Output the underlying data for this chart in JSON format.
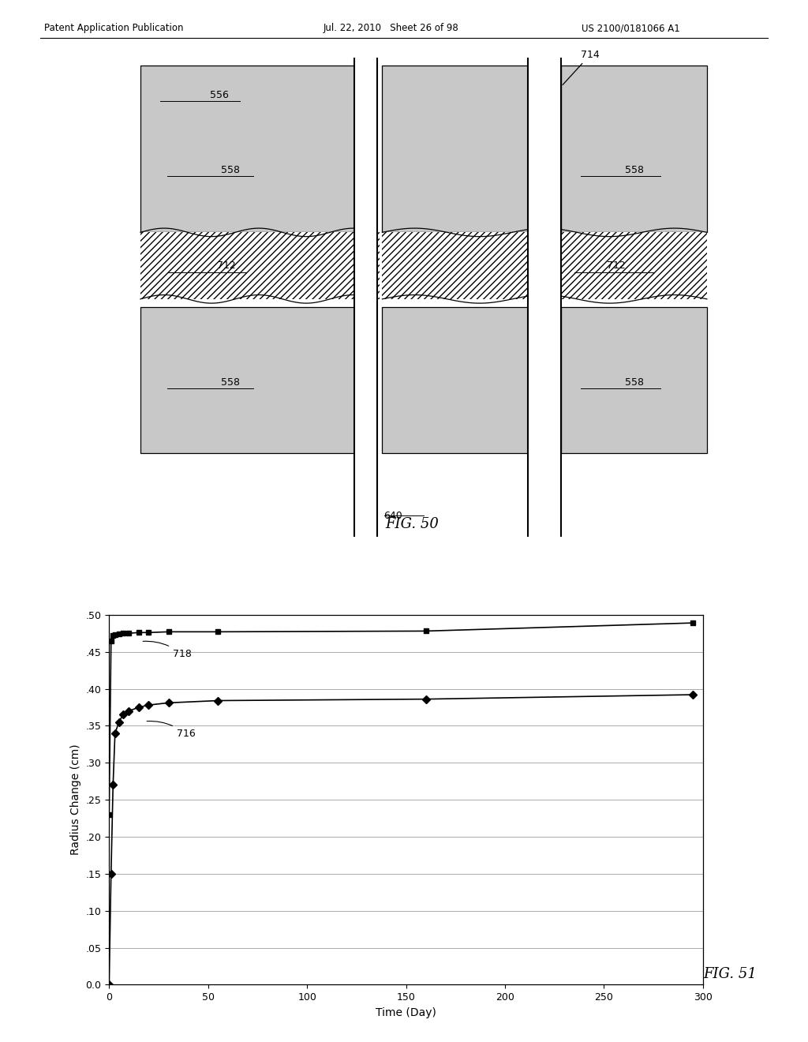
{
  "header_left": "Patent Application Publication",
  "header_mid": "Jul. 22, 2010   Sheet 26 of 98",
  "header_right": "US 2100/0181066 A1",
  "fig50_label": "FIG. 50",
  "fig51_label": "FIG. 51",
  "series718_x": [
    0,
    1,
    2,
    3,
    5,
    7,
    10,
    15,
    20,
    30,
    55,
    160,
    295
  ],
  "series718_y": [
    0.23,
    0.465,
    0.472,
    0.473,
    0.474,
    0.475,
    0.475,
    0.476,
    0.476,
    0.477,
    0.477,
    0.478,
    0.489
  ],
  "series716_x": [
    0,
    1,
    2,
    3,
    5,
    7,
    10,
    15,
    20,
    30,
    55,
    160,
    295
  ],
  "series716_y": [
    0.0,
    0.15,
    0.27,
    0.34,
    0.355,
    0.365,
    0.37,
    0.375,
    0.378,
    0.381,
    0.384,
    0.386,
    0.392
  ],
  "xlabel": "Time (Day)",
  "ylabel": "Radius Change (cm)",
  "xlim": [
    0,
    300
  ],
  "ylim": [
    0.0,
    0.5
  ],
  "yticks": [
    0.0,
    0.05,
    0.1,
    0.15,
    0.2,
    0.25,
    0.3,
    0.35,
    0.4,
    0.45,
    0.5
  ],
  "ytick_labels": [
    "0.0",
    ".05",
    ".10",
    ".15",
    ".20",
    ".25",
    ".30",
    ".35",
    ".40",
    ".45",
    ".50"
  ],
  "xticks": [
    0,
    50,
    100,
    150,
    200,
    250,
    300
  ],
  "xtick_labels": [
    "0",
    "50",
    "100",
    "150",
    "200",
    "250",
    "300"
  ],
  "bg_color": "#ffffff",
  "stipple_color": "#c8c8c8",
  "hatch_fill": "white"
}
